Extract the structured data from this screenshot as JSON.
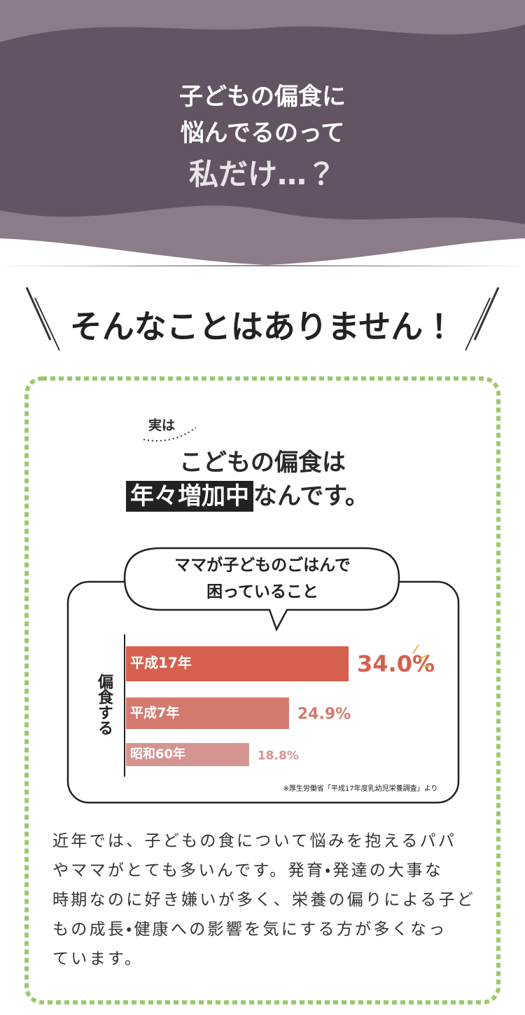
{
  "hero": {
    "lines": [
      "子どもの偏食に",
      "悩んでるのって",
      "私だけ…？"
    ]
  },
  "banner": "そんなことはありません！",
  "lead": "実は",
  "headline": {
    "line1": "こどもの偏食は",
    "highlight": "年々増加中",
    "rest": "なんです。"
  },
  "chart_data": {
    "type": "bar",
    "orientation": "horizontal",
    "title_lines": [
      "ママが子どものごはんで",
      "困っていること"
    ],
    "ylabel": "偏食する",
    "categories": [
      "平成17年",
      "平成7年",
      "昭和60年"
    ],
    "values": [
      34.0,
      24.9,
      18.8
    ],
    "value_labels": [
      "34.0%",
      "24.9%",
      "18.8%"
    ],
    "colors": [
      "#d5604f",
      "#d47a70",
      "#d49490"
    ],
    "source": "※厚生労働省「平成17年度乳幼児栄養調査」より"
  },
  "body": {
    "lines": [
      "近年では、子どもの食について悩みを抱えるパパ",
      "やママがとても多いんです。発育・発達の大事な",
      "時期なのに好き嫌いが多く、栄養の偏りによる子ど",
      "もの成長・健康への影響を気にする方が多くなっ",
      "ています。"
    ]
  }
}
